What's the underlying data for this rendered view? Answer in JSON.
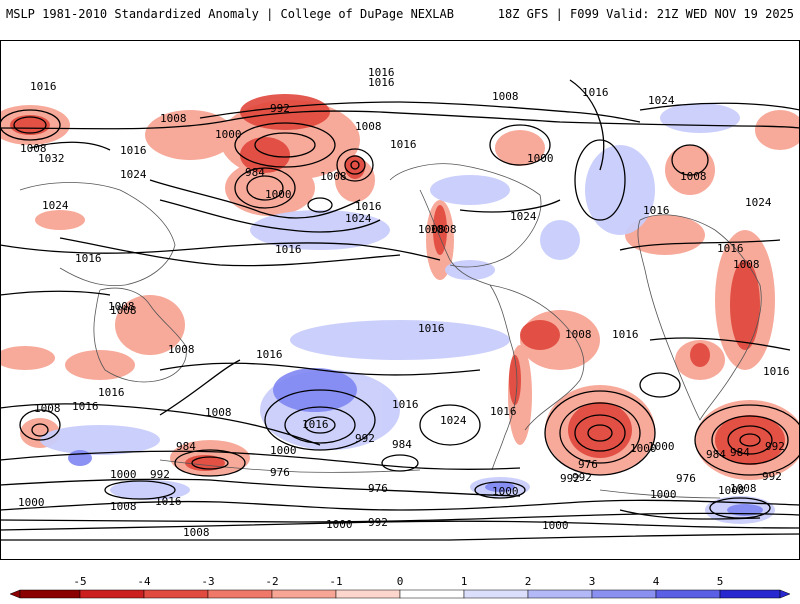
{
  "header": {
    "title_left": "MSLP 1981-2010 Standardized Anomaly | College of DuPage NEXLAB",
    "title_right": "18Z GFS | F099 Valid: 21Z WED NOV 19 2025"
  },
  "colors": {
    "neg_strong": "#b00000",
    "neg_mid": "#e0473c",
    "neg_light": "#f7a595",
    "pos_light": "#c9cdfb",
    "pos_mid": "#7f86f2",
    "pos_strong": "#3b3be0",
    "contour": "#000000",
    "coast": "#555555"
  },
  "colorbar": {
    "ticks": [
      "-5",
      "-4",
      "-3",
      "-2",
      "-1",
      "0",
      "1",
      "2",
      "3",
      "4",
      "5"
    ],
    "colors": [
      "#8b0000",
      "#cc1f1f",
      "#e04a3f",
      "#f07868",
      "#f7a595",
      "#fcd6cc",
      "#ffffff",
      "#dcdffc",
      "#b3b8f7",
      "#8a90f0",
      "#5a5fe5",
      "#2828d0"
    ]
  },
  "contour_labels": [
    "1016",
    "1016",
    "1016",
    "1008",
    "1008",
    "992",
    "1000",
    "984",
    "1000",
    "1008",
    "1008",
    "1016",
    "1024",
    "1032",
    "1024",
    "1016",
    "1024",
    "1016",
    "1016",
    "1016",
    "1008",
    "1024",
    "1000",
    "1016",
    "1024",
    "1008",
    "1016",
    "1024",
    "1016",
    "1008",
    "1016",
    "1008",
    "1008",
    "1016",
    "1016",
    "1016",
    "1016",
    "1016",
    "1008",
    "1016",
    "1024",
    "1016",
    "1008",
    "1016",
    "1008",
    "1008",
    "1000",
    "992",
    "1000",
    "984",
    "976",
    "992",
    "984",
    "976",
    "1000",
    "992",
    "984",
    "1000",
    "1016",
    "1008",
    "1008",
    "1000",
    "992",
    "1000",
    "976",
    "992",
    "1000",
    "976",
    "984",
    "992",
    "1008",
    "1000",
    "1008",
    "1008",
    "992",
    "1000",
    "1008"
  ]
}
